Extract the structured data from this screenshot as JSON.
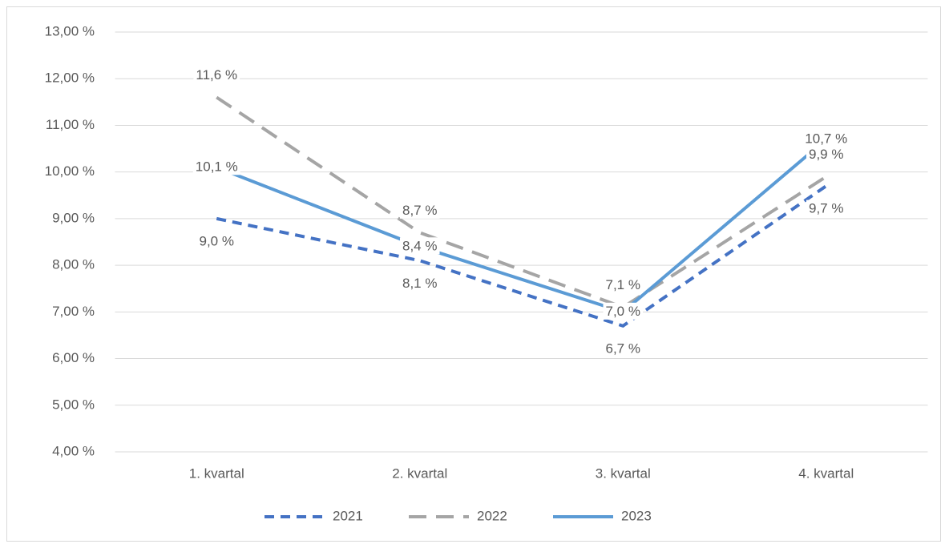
{
  "chart_data": {
    "type": "line",
    "categories": [
      "1. kvartal",
      "2. kvartal",
      "3. kvartal",
      "4. kvartal"
    ],
    "series": [
      {
        "name": "2021",
        "color": "#4472c4",
        "dash": "dash",
        "values": [
          9.0,
          8.1,
          6.7,
          9.7
        ],
        "value_labels": [
          "9,0 %",
          "8,1 %",
          "6,7 %",
          "9,7 %"
        ],
        "label_position": "below"
      },
      {
        "name": "2022",
        "color": "#a5a5a5",
        "dash": "longdash",
        "values": [
          11.6,
          8.7,
          7.1,
          9.9
        ],
        "value_labels": [
          "11,6 %",
          "8,7 %",
          "7,1 %",
          "9,9 %"
        ],
        "label_position": "above"
      },
      {
        "name": "2023",
        "color": "#5b9bd5",
        "dash": "solid",
        "values": [
          10.1,
          8.4,
          7.0,
          10.7
        ],
        "value_labels": [
          "10,1 %",
          "8,4 %",
          "7,0 %",
          "10,7 %"
        ],
        "label_position": "center"
      }
    ],
    "ylim": [
      4,
      13
    ],
    "yticks": [
      {
        "value": 4,
        "label": "4,00 %"
      },
      {
        "value": 5,
        "label": "5,00 %"
      },
      {
        "value": 6,
        "label": "6,00 %"
      },
      {
        "value": 7,
        "label": "7,00 %"
      },
      {
        "value": 8,
        "label": "8,00 %"
      },
      {
        "value": 9,
        "label": "9,00 %"
      },
      {
        "value": 10,
        "label": "10,00 %"
      },
      {
        "value": 11,
        "label": "11,00 %"
      },
      {
        "value": 12,
        "label": "12,00 %"
      },
      {
        "value": 13,
        "label": "13,00 %"
      }
    ],
    "grid": true,
    "legend": "bottom"
  }
}
